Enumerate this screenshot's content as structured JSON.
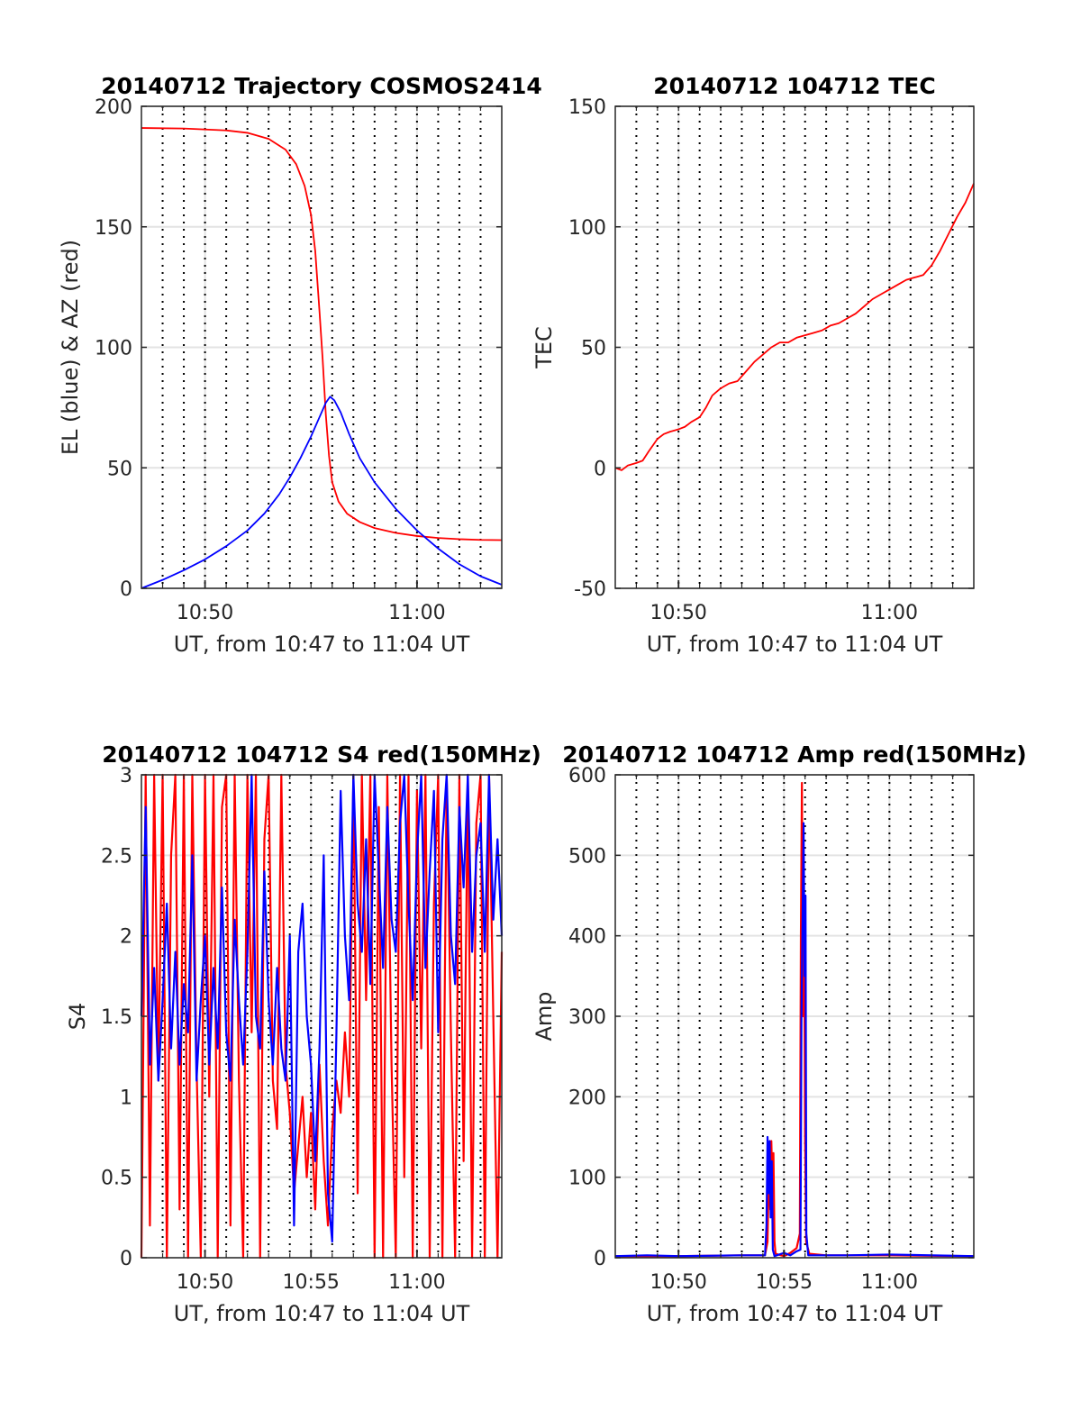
{
  "chart_data": [
    {
      "type": "line",
      "title": "20140712 Trajectory COSMOS2414",
      "xlabel": "UT, from 10:47 to 11:04 UT",
      "ylabel": "EL (blue) & AZ (red)",
      "x_unit": "minutes after 10:47 UT",
      "xlim": [
        0,
        17
      ],
      "ylim": [
        0,
        200
      ],
      "yticks": [
        0,
        50,
        100,
        150,
        200
      ],
      "ytick_labels": [
        "0",
        "50",
        "100",
        "150",
        "200"
      ],
      "xticks": [
        3,
        13
      ],
      "xtick_labels": [
        "10:50",
        "11:00"
      ],
      "grid": "dotted every minute, solid at labeled ticks",
      "series": [
        {
          "name": "AZ",
          "color": "#ff0000",
          "points": [
            [
              0,
              191
            ],
            [
              2,
              190.8
            ],
            [
              4,
              190
            ],
            [
              5,
              189
            ],
            [
              6,
              186.5
            ],
            [
              6.8,
              182
            ],
            [
              7.3,
              176
            ],
            [
              7.7,
              167
            ],
            [
              8,
              155
            ],
            [
              8.2,
              140
            ],
            [
              8.4,
              115
            ],
            [
              8.55,
              95
            ],
            [
              8.7,
              72
            ],
            [
              8.85,
              55
            ],
            [
              9,
              44
            ],
            [
              9.3,
              36
            ],
            [
              9.7,
              31
            ],
            [
              10.3,
              27.5
            ],
            [
              11,
              25
            ],
            [
              12,
              23
            ],
            [
              13,
              21.7
            ],
            [
              14,
              20.9
            ],
            [
              15,
              20.4
            ],
            [
              16,
              20.1
            ],
            [
              17,
              20
            ]
          ]
        },
        {
          "name": "EL",
          "color": "#0000ff",
          "points": [
            [
              0,
              0
            ],
            [
              1,
              3.5
            ],
            [
              2,
              7.5
            ],
            [
              3,
              12
            ],
            [
              4,
              17.5
            ],
            [
              5,
              24
            ],
            [
              5.8,
              31
            ],
            [
              6.5,
              39
            ],
            [
              7,
              46
            ],
            [
              7.5,
              54
            ],
            [
              8,
              63
            ],
            [
              8.4,
              71
            ],
            [
              8.7,
              77
            ],
            [
              8.9,
              79.5
            ],
            [
              9.1,
              78
            ],
            [
              9.4,
              73
            ],
            [
              9.8,
              64
            ],
            [
              10.3,
              54
            ],
            [
              11,
              44
            ],
            [
              12,
              33
            ],
            [
              13,
              24
            ],
            [
              14,
              16.5
            ],
            [
              15,
              10
            ],
            [
              16,
              5
            ],
            [
              17,
              1.5
            ]
          ]
        }
      ]
    },
    {
      "type": "line",
      "title": "20140712 104712 TEC",
      "xlabel": "UT, from 10:47 to 11:04 UT",
      "ylabel": "TEC",
      "x_unit": "minutes after 10:47 UT",
      "xlim": [
        0,
        17
      ],
      "ylim": [
        -50,
        150
      ],
      "yticks": [
        -50,
        0,
        50,
        100,
        150
      ],
      "ytick_labels": [
        "-50",
        "0",
        "50",
        "100",
        "150"
      ],
      "xticks": [
        3,
        13
      ],
      "xtick_labels": [
        "10:50",
        "11:00"
      ],
      "grid": "dotted every minute, solid at labeled ticks",
      "series": [
        {
          "name": "TEC",
          "color": "#ff0000",
          "points": [
            [
              0,
              0
            ],
            [
              0.3,
              -1
            ],
            [
              0.6,
              1
            ],
            [
              1,
              2
            ],
            [
              1.3,
              3
            ],
            [
              1.6,
              7
            ],
            [
              2,
              12
            ],
            [
              2.3,
              14
            ],
            [
              2.6,
              15
            ],
            [
              3,
              16
            ],
            [
              3.3,
              17
            ],
            [
              3.6,
              19
            ],
            [
              4,
              21
            ],
            [
              4.3,
              25
            ],
            [
              4.6,
              30
            ],
            [
              5,
              33
            ],
            [
              5.4,
              35
            ],
            [
              5.8,
              36
            ],
            [
              6.2,
              40
            ],
            [
              6.6,
              44
            ],
            [
              7,
              47
            ],
            [
              7.4,
              50
            ],
            [
              7.8,
              52
            ],
            [
              8.2,
              52
            ],
            [
              8.6,
              54
            ],
            [
              9,
              55
            ],
            [
              9.4,
              56
            ],
            [
              9.8,
              57
            ],
            [
              10.2,
              59
            ],
            [
              10.6,
              60
            ],
            [
              11,
              62
            ],
            [
              11.4,
              64
            ],
            [
              11.8,
              67
            ],
            [
              12.2,
              70
            ],
            [
              12.6,
              72
            ],
            [
              13,
              74
            ],
            [
              13.4,
              76
            ],
            [
              13.8,
              78
            ],
            [
              14.2,
              79
            ],
            [
              14.6,
              80
            ],
            [
              15,
              84
            ],
            [
              15.4,
              90
            ],
            [
              15.8,
              97
            ],
            [
              16.2,
              104
            ],
            [
              16.6,
              110
            ],
            [
              17,
              118
            ]
          ]
        }
      ]
    },
    {
      "type": "line",
      "title": "20140712 104712 S4 red(150MHz)",
      "xlabel": "UT, from 10:47 to 11:04 UT",
      "ylabel": "S4",
      "x_unit": "minutes after 10:47 UT",
      "xlim": [
        0,
        17
      ],
      "ylim": [
        0,
        3
      ],
      "yticks": [
        0,
        0.5,
        1,
        1.5,
        2,
        2.5,
        3
      ],
      "ytick_labels": [
        "0",
        "0.5",
        "1",
        "1.5",
        "2",
        "2.5",
        "3"
      ],
      "xticks": [
        3,
        8,
        13
      ],
      "xtick_labels": [
        "10:50",
        "10:55",
        "11:00"
      ],
      "grid": "dotted every minute, solid at labeled ticks",
      "x_step": 0.2,
      "series": [
        {
          "name": "S4 red",
          "color": "#ff0000",
          "values": [
            0,
            3,
            0.2,
            3,
            1.1,
            3,
            0,
            2.5,
            3,
            0.3,
            3,
            0,
            3,
            1.2,
            0,
            3,
            1.0,
            3,
            0,
            2.8,
            3,
            0.2,
            3,
            1.1,
            0,
            3,
            1.4,
            3,
            0,
            2.6,
            3,
            1.1,
            0.8,
            3,
            1.2,
            0.9,
            0.4,
            0.7,
            1.0,
            0.5,
            0.9,
            0.3,
            1.2,
            0.6,
            0.2,
            0.8,
            1.1,
            0.9,
            1.4,
            1.0,
            3,
            0.4,
            3,
            1.6,
            3,
            0,
            2.8,
            0,
            3,
            1.2,
            0,
            3,
            0.5,
            3,
            0,
            2.9,
            1.3,
            3,
            0,
            2.2,
            3,
            0,
            3,
            1.4,
            0,
            3,
            0.6,
            3,
            0,
            2.7,
            3,
            0,
            3,
            1.5,
            0,
            1.9
          ]
        },
        {
          "name": "S4 blue",
          "color": "#0000ff",
          "values": [
            1.5,
            2.8,
            1.2,
            1.8,
            1.1,
            1.6,
            2.2,
            1.3,
            1.9,
            1.2,
            1.7,
            1.4,
            2.5,
            1.1,
            1.6,
            2.0,
            1.2,
            1.8,
            1.3,
            2.3,
            1.4,
            1.1,
            2.1,
            1.6,
            1.2,
            1.9,
            3.0,
            1.5,
            1.3,
            2.4,
            1.6,
            1.2,
            1.8,
            1.3,
            1.1,
            2.0,
            0.2,
            1.9,
            2.2,
            1.5,
            1.2,
            0.6,
            1.3,
            2.5,
            0.4,
            0.1,
            1.4,
            2.9,
            2.0,
            1.6,
            3.0,
            2.2,
            1.9,
            2.6,
            1.7,
            3.0,
            2.4,
            1.8,
            2.8,
            2.1,
            1.9,
            2.7,
            3.0,
            2.2,
            1.6,
            2.5,
            3.0,
            1.8,
            2.4,
            2.9,
            1.4,
            2.6,
            3.0,
            2.0,
            1.7,
            2.8,
            2.3,
            3.0,
            1.9,
            2.5,
            2.7,
            1.9,
            3.0,
            2.1,
            2.6,
            2.0
          ]
        }
      ]
    },
    {
      "type": "line",
      "title": "20140712 104712 Amp red(150MHz)",
      "xlabel": "UT, from 10:47 to 11:04 UT",
      "ylabel": "Amp",
      "x_unit": "minutes after 10:47 UT",
      "xlim": [
        0,
        17
      ],
      "ylim": [
        0,
        600
      ],
      "yticks": [
        0,
        100,
        200,
        300,
        400,
        500,
        600
      ],
      "ytick_labels": [
        "0",
        "100",
        "200",
        "300",
        "400",
        "500",
        "600"
      ],
      "xticks": [
        3,
        8,
        13
      ],
      "xtick_labels": [
        "10:50",
        "10:55",
        "11:00"
      ],
      "grid": "dotted every minute, solid at labeled ticks",
      "series": [
        {
          "name": "Amp red",
          "color": "#ff0000",
          "points": [
            [
              0,
              2
            ],
            [
              3,
              2
            ],
            [
              6,
              3
            ],
            [
              7.1,
              3
            ],
            [
              7.22,
              20
            ],
            [
              7.3,
              130
            ],
            [
              7.35,
              60
            ],
            [
              7.4,
              145
            ],
            [
              7.45,
              90
            ],
            [
              7.5,
              130
            ],
            [
              7.55,
              20
            ],
            [
              7.6,
              5
            ],
            [
              8,
              2
            ],
            [
              8.3,
              6
            ],
            [
              8.6,
              12
            ],
            [
              8.75,
              30
            ],
            [
              8.8,
              400
            ],
            [
              8.85,
              590
            ],
            [
              8.9,
              300
            ],
            [
              8.95,
              450
            ],
            [
              9.0,
              150
            ],
            [
              9.05,
              20
            ],
            [
              9.2,
              5
            ],
            [
              10,
              3
            ],
            [
              13,
              3
            ],
            [
              17,
              2
            ]
          ]
        },
        {
          "name": "Amp blue",
          "color": "#0000ff",
          "points": [
            [
              0,
              2
            ],
            [
              1.5,
              3
            ],
            [
              3,
              2
            ],
            [
              6,
              3
            ],
            [
              7.1,
              3
            ],
            [
              7.17,
              40
            ],
            [
              7.22,
              150
            ],
            [
              7.27,
              80
            ],
            [
              7.32,
              145
            ],
            [
              7.37,
              50
            ],
            [
              7.42,
              120
            ],
            [
              7.47,
              10
            ],
            [
              7.55,
              2
            ],
            [
              8,
              6
            ],
            [
              8.3,
              3
            ],
            [
              8.6,
              8
            ],
            [
              8.78,
              10
            ],
            [
              8.83,
              300
            ],
            [
              8.88,
              420
            ],
            [
              8.93,
              540
            ],
            [
              8.98,
              350
            ],
            [
              9.02,
              450
            ],
            [
              9.06,
              30
            ],
            [
              9.15,
              3
            ],
            [
              11,
              3
            ],
            [
              13,
              4
            ],
            [
              17,
              2
            ]
          ]
        }
      ]
    }
  ]
}
